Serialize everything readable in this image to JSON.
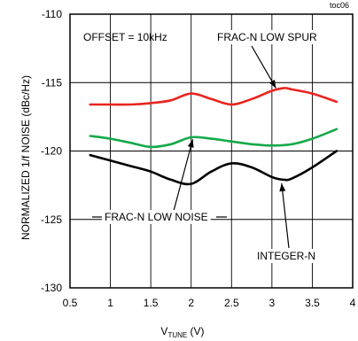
{
  "chart_data": {
    "type": "line",
    "tag": "toc06",
    "xlabel": {
      "main": "V",
      "sub": "TUNE",
      "unit": " (V)"
    },
    "ylabel": "NORMALIZED 1/f NOISE  (dBc/Hz)",
    "xlim": [
      0.5,
      4
    ],
    "ylim": [
      -130,
      -110
    ],
    "xticks": [
      0.5,
      1,
      1.5,
      2,
      2.5,
      3,
      3.5,
      4
    ],
    "yticks": [
      -130,
      -125,
      -120,
      -115,
      -110
    ],
    "xtick_labels": [
      "0.5",
      "1",
      "1.5",
      "2",
      "2.5",
      "3",
      "3.5",
      "4"
    ],
    "ytick_labels": [
      "-130",
      "-125",
      "-120",
      "-115",
      "-110"
    ],
    "grid": true,
    "annotations": {
      "offset": "OFFSET = 10kHz",
      "frac_n_low_spur": "FRAC-N LOW SPUR",
      "frac_n_low_noise": "FRAC-N LOW NOISE",
      "integer_n": "INTEGER-N"
    },
    "series": [
      {
        "label_key": "frac_n_low_spur",
        "color": "#e8251f",
        "x": [
          0.75,
          1.0,
          1.25,
          1.5,
          1.75,
          2.0,
          2.25,
          2.5,
          2.75,
          3.0,
          3.15,
          3.25,
          3.5,
          3.8
        ],
        "y": [
          -116.6,
          -116.6,
          -116.6,
          -116.5,
          -116.3,
          -115.8,
          -116.2,
          -116.6,
          -116.2,
          -115.6,
          -115.4,
          -115.5,
          -115.8,
          -116.4
        ]
      },
      {
        "label_key": "frac_n_low_noise",
        "color": "#15a94a",
        "x": [
          0.75,
          1.0,
          1.25,
          1.5,
          1.75,
          2.0,
          2.25,
          2.5,
          2.75,
          3.0,
          3.25,
          3.5,
          3.8
        ],
        "y": [
          -118.9,
          -119.1,
          -119.4,
          -119.7,
          -119.5,
          -119.0,
          -119.1,
          -119.3,
          -119.5,
          -119.6,
          -119.5,
          -119.1,
          -118.4
        ]
      },
      {
        "label_key": "integer_n",
        "color": "#000000",
        "x": [
          0.75,
          1.0,
          1.25,
          1.5,
          1.75,
          2.0,
          2.25,
          2.5,
          2.75,
          3.0,
          3.15,
          3.25,
          3.5,
          3.8
        ],
        "y": [
          -120.3,
          -120.7,
          -121.1,
          -121.5,
          -122.1,
          -122.4,
          -121.5,
          -120.9,
          -121.2,
          -121.9,
          -122.1,
          -122.0,
          -121.2,
          -120.0
        ]
      }
    ]
  }
}
